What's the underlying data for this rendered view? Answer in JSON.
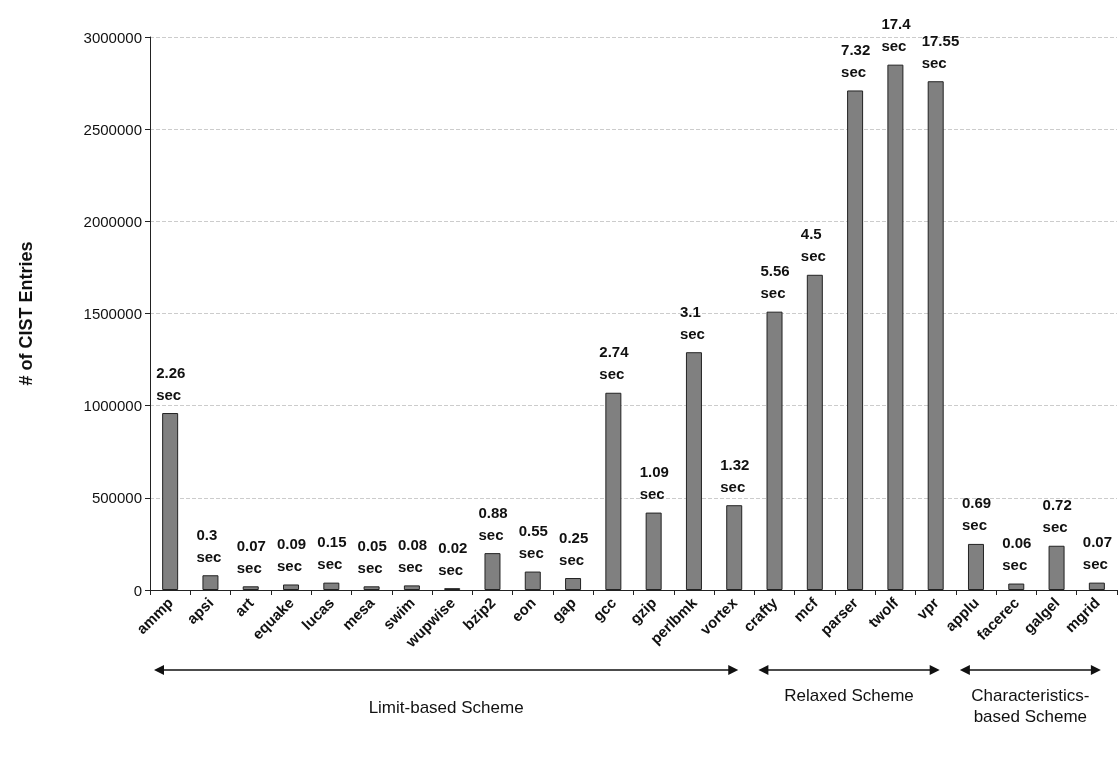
{
  "chart_data": {
    "type": "bar",
    "ylabel": "# of CIST Entries",
    "categories": [
      "ammp",
      "apsi",
      "art",
      "equake",
      "lucas",
      "mesa",
      "swim",
      "wupwise",
      "bzip2",
      "eon",
      "gap",
      "gcc",
      "gzip",
      "perlbmk",
      "vortex",
      "crafty",
      "mcf",
      "parser",
      "twolf",
      "vpr",
      "applu",
      "facerec",
      "galgel",
      "mgrid"
    ],
    "values": [
      960000,
      80000,
      20000,
      30000,
      40000,
      20000,
      25000,
      10000,
      200000,
      100000,
      65000,
      1070000,
      420000,
      1290000,
      460000,
      1510000,
      1710000,
      2710000,
      2850000,
      2760000,
      250000,
      35000,
      240000,
      40000
    ],
    "color": "#808080",
    "ylim": [
      0,
      3000000
    ],
    "yticks": [
      0,
      500000,
      1000000,
      1500000,
      2000000,
      2500000,
      3000000
    ],
    "grid": "y",
    "annotations": [
      {
        "text": "2.26 sec",
        "x": "ammp",
        "y": 960000
      },
      {
        "text": "0.3 sec",
        "x": "apsi",
        "y": 80000
      },
      {
        "text": "0.07 sec",
        "x": "art",
        "y": 20000
      },
      {
        "text": "0.09 sec",
        "x": "equake",
        "y": 30000
      },
      {
        "text": "0.15 sec",
        "x": "lucas",
        "y": 40000
      },
      {
        "text": "0.05 sec",
        "x": "mesa",
        "y": 20000
      },
      {
        "text": "0.08 sec",
        "x": "swim",
        "y": 25000
      },
      {
        "text": "0.02 sec",
        "x": "wupwise",
        "y": 10000
      },
      {
        "text": "0.88 sec",
        "x": "bzip2",
        "y": 200000
      },
      {
        "text": "0.55 sec",
        "x": "eon",
        "y": 100000
      },
      {
        "text": "0.25 sec",
        "x": "gap",
        "y": 65000
      },
      {
        "text": "2.74 sec",
        "x": "gcc",
        "y": 1070000
      },
      {
        "text": "1.09 sec",
        "x": "gzip",
        "y": 420000
      },
      {
        "text": "3.1 sec",
        "x": "perlbmk",
        "y": 1290000
      },
      {
        "text": "1.32 sec",
        "x": "vortex",
        "y": 460000
      },
      {
        "text": "5.56 sec",
        "x": "crafty",
        "y": 1510000
      },
      {
        "text": "4.5 sec",
        "x": "mcf",
        "y": 1710000
      },
      {
        "text": "7.32 sec",
        "x": "parser",
        "y": 2710000
      },
      {
        "text": "17.4 sec",
        "x": "twolf",
        "y": 2850000
      },
      {
        "text": "17.55 sec",
        "x": "vpr",
        "y": 2760000
      },
      {
        "text": "0.69 sec",
        "x": "applu",
        "y": 250000
      },
      {
        "text": "0.06 sec",
        "x": "facerec",
        "y": 35000
      },
      {
        "text": "0.72 sec",
        "x": "galgel",
        "y": 240000
      },
      {
        "text": "0.07 sec",
        "x": "mgrid",
        "y": 40000
      },
      "Limit-based Scheme",
      "Relaxed Scheme",
      "Characteristics-based Scheme"
    ]
  }
}
